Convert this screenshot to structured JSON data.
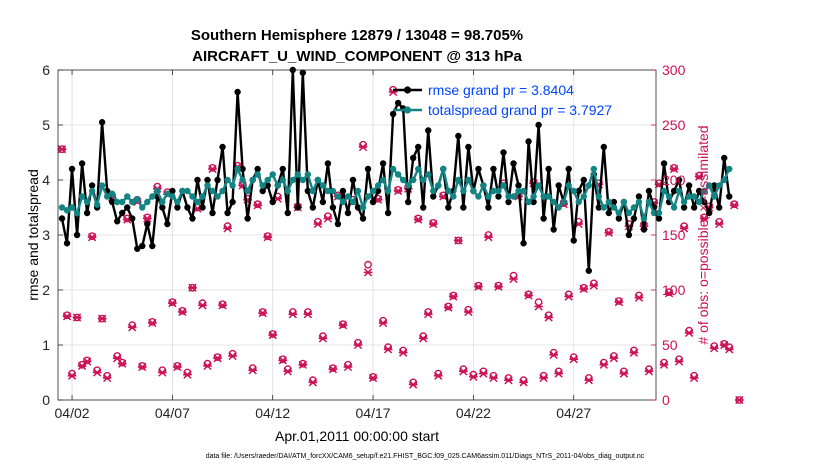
{
  "chart_data": {
    "type": "line",
    "title": "Southern Hemisphere 12879 / 13048 = 98.705%",
    "subtitle": "AIRCRAFT_U_WIND_COMPONENT @ 313 hPa",
    "xlabel": "Apr.01,2011 00:00:00 start",
    "ylabel": "rmse and totalspread",
    "y2label": "# of obs: o=possible; ×=assimilated",
    "footer": "data file: /Users/raeder/DAI/ATM_forcXX/CAM6_setup/f.e21.FHIST_BGC.f09_025.CAM6assim.011/Diags_NTrS_2011-04/obs_diag_output.nc",
    "xlim": [
      1.3,
      31.1
    ],
    "ylim": [
      0,
      6
    ],
    "y2lim": [
      0,
      300
    ],
    "x_ticks": [
      2,
      7,
      12,
      17,
      22,
      27
    ],
    "x_tick_labels": [
      "04/02",
      "04/07",
      "04/12",
      "04/17",
      "04/22",
      "04/27"
    ],
    "y_ticks": [
      0,
      1,
      2,
      3,
      4,
      5,
      6
    ],
    "y_tick_labels": [
      "0",
      "1",
      "2",
      "3",
      "4",
      "5",
      "6"
    ],
    "y2_ticks": [
      0,
      50,
      100,
      150,
      200,
      250,
      300
    ],
    "y2_tick_labels": [
      "0",
      "50",
      "100",
      "150",
      "200",
      "250",
      "300"
    ],
    "x_step_days": 0.25,
    "x_start": 1.5,
    "colors": {
      "rmse": "#000000",
      "spread": "#138484",
      "obs": "#cc1155",
      "legend_text": "#0044ff"
    },
    "series": [
      {
        "name": "rmse grand pr = 3.8404",
        "values": [
          3.3,
          2.85,
          4.2,
          3.0,
          4.3,
          3.4,
          3.9,
          3.5,
          5.05,
          3.8,
          3.6,
          3.25,
          3.4,
          3.5,
          3.3,
          2.75,
          2.8,
          3.2,
          2.8,
          3.7,
          3.5,
          3.2,
          3.8,
          3.5,
          3.8,
          3.5,
          3.3,
          4.0,
          3.5,
          4.0,
          3.4,
          4.0,
          4.6,
          3.4,
          3.6,
          5.6,
          4.2,
          3.3,
          4.0,
          4.2,
          3.8,
          3.9,
          3.6,
          3.9,
          4.2,
          3.4,
          6.0,
          3.5,
          5.95,
          3.8,
          3.5,
          4.0,
          3.6,
          4.3,
          3.5,
          3.2,
          3.8,
          3.4,
          4.0,
          3.5,
          3.3,
          4.2,
          3.6,
          3.8,
          4.3,
          3.4,
          5.2,
          5.4,
          5.3,
          3.6,
          4.4,
          4.6,
          3.5,
          4.9,
          3.7,
          3.9,
          4.2,
          3.5,
          3.8,
          4.8,
          3.5,
          4.6,
          3.8,
          4.2,
          3.9,
          3.5,
          4.2,
          3.7,
          4.5,
          3.6,
          4.3,
          3.9,
          2.85,
          4.7,
          3.6,
          5.0,
          3.3,
          4.2,
          3.1,
          3.9,
          3.6,
          4.2,
          2.9,
          3.8,
          4.0,
          2.35,
          4.1,
          3.5,
          4.6,
          3.4,
          3.6,
          3.3,
          3.6,
          3.0,
          3.3,
          3.7,
          3.1,
          3.8,
          3.5,
          3.3,
          4.3,
          3.6,
          3.8,
          4.0,
          3.5,
          3.9,
          3.5,
          3.8,
          3.6,
          3.4,
          3.9,
          3.5,
          4.4,
          3.7
        ]
      },
      {
        "name": "totalspread grand pr = 3.7927",
        "values": [
          3.5,
          3.45,
          3.5,
          3.4,
          3.7,
          3.6,
          3.8,
          3.55,
          3.9,
          3.7,
          3.75,
          3.6,
          3.6,
          3.7,
          3.6,
          3.65,
          3.5,
          3.6,
          3.7,
          3.8,
          3.6,
          3.75,
          3.7,
          3.6,
          3.8,
          3.8,
          3.7,
          3.6,
          3.7,
          3.9,
          3.8,
          3.7,
          3.8,
          4.0,
          3.9,
          4.2,
          4.0,
          3.8,
          4.0,
          4.1,
          3.9,
          4.0,
          4.1,
          3.9,
          4.0,
          3.8,
          4.0,
          4.1,
          4.0,
          4.1,
          3.8,
          4.0,
          3.9,
          3.8,
          3.8,
          3.7,
          3.6,
          3.7,
          3.6,
          3.8,
          3.5,
          3.7,
          3.8,
          3.9,
          4.0,
          3.8,
          4.2,
          4.1,
          4.0,
          3.9,
          4.0,
          4.2,
          4.0,
          4.1,
          3.8,
          3.9,
          4.2,
          3.8,
          3.7,
          4.0,
          3.8,
          4.0,
          3.8,
          3.7,
          3.9,
          3.7,
          3.8,
          3.8,
          3.9,
          3.7,
          3.7,
          3.8,
          3.8,
          3.6,
          3.7,
          3.9,
          3.7,
          3.7,
          3.6,
          3.5,
          3.6,
          3.9,
          3.8,
          3.6,
          3.7,
          3.9,
          4.2,
          3.7,
          3.5,
          3.6,
          3.5,
          3.4,
          3.6,
          3.4,
          3.5,
          3.6,
          3.3,
          3.6,
          3.4,
          3.4,
          3.8,
          3.7,
          3.5,
          3.8,
          3.6,
          3.7,
          3.7,
          3.6,
          3.8,
          3.9,
          3.7,
          3.9,
          4.0,
          4.2
        ]
      },
      {
        "name": "possible obs",
        "axis": "right",
        "values": [
          228,
          77,
          24,
          75,
          32,
          36,
          149,
          27,
          74,
          22,
          185,
          40,
          34,
          165,
          68,
          182,
          31,
          166,
          71,
          194,
          27,
          189,
          89,
          31,
          81,
          25,
          102,
          175,
          88,
          33,
          211,
          39,
          87,
          158,
          42,
          213,
          196,
          183,
          29,
          178,
          80,
          149,
          60,
          185,
          37,
          28,
          80,
          176,
          33,
          80,
          18,
          162,
          58,
          167,
          29,
          186,
          69,
          32,
          182,
          52,
          232,
          123,
          21,
          183,
          72,
          48,
          282,
          191,
          45,
          193,
          16,
          165,
          58,
          80,
          161,
          24,
          186,
          85,
          95,
          145,
          28,
          82,
          23,
          104,
          26,
          150,
          22,
          104,
          197,
          20,
          113,
          186,
          18,
          96,
          198,
          89,
          22,
          77,
          43,
          26,
          179,
          96,
          39,
          162,
          102,
          20,
          106,
          197,
          34,
          153,
          40,
          90,
          26,
          160,
          45,
          95,
          159,
          28,
          180,
          197,
          34,
          98,
          211,
          37,
          158,
          63,
          22,
          204,
          166,
          176,
          49,
          162,
          51,
          48,
          178,
          0
        ]
      },
      {
        "name": "assimilated obs",
        "axis": "right",
        "values": [
          228,
          76,
          22,
          75,
          31,
          35,
          148,
          25,
          74,
          20,
          184,
          38,
          33,
          164,
          66,
          180,
          30,
          165,
          70,
          192,
          25,
          187,
          88,
          30,
          80,
          23,
          102,
          174,
          86,
          31,
          210,
          38,
          86,
          156,
          40,
          212,
          195,
          182,
          27,
          177,
          79,
          148,
          59,
          183,
          36,
          26,
          78,
          175,
          32,
          78,
          16,
          160,
          56,
          165,
          28,
          185,
          68,
          30,
          180,
          50,
          230,
          116,
          20,
          182,
          70,
          46,
          280,
          190,
          43,
          192,
          14,
          164,
          56,
          78,
          160,
          22,
          185,
          84,
          94,
          145,
          26,
          80,
          21,
          103,
          24,
          148,
          20,
          103,
          196,
          18,
          110,
          185,
          16,
          95,
          197,
          85,
          20,
          75,
          41,
          24,
          178,
          94,
          37,
          160,
          101,
          18,
          104,
          196,
          32,
          152,
          38,
          89,
          24,
          158,
          43,
          93,
          158,
          26,
          179,
          196,
          32,
          97,
          210,
          35,
          156,
          61,
          20,
          203,
          165,
          175,
          47,
          160,
          50,
          46,
          177,
          0
        ]
      }
    ],
    "legend": [
      "rmse grand pr = 3.8404",
      "totalspread grand pr = 3.7927"
    ],
    "legend_position": "top-right",
    "grid": true
  }
}
